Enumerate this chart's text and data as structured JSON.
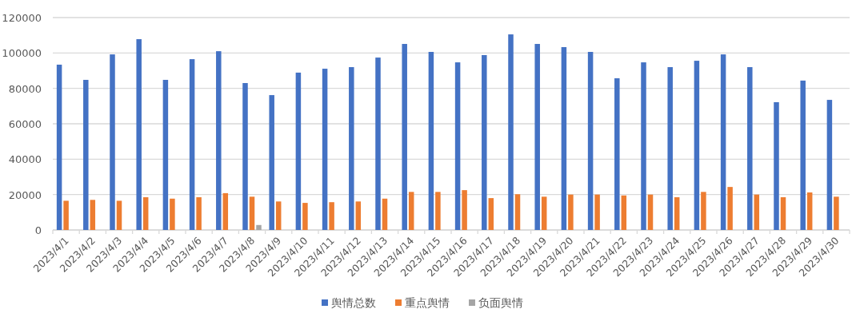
{
  "chart_data": {
    "type": "bar",
    "categories": [
      "2023/4/1",
      "2023/4/2",
      "2023/4/3",
      "2023/4/4",
      "2023/4/5",
      "2023/4/6",
      "2023/4/7",
      "2023/4/8",
      "2023/4/9",
      "2023/4/10",
      "2023/4/11",
      "2023/4/12",
      "2023/4/13",
      "2023/4/14",
      "2023/4/15",
      "2023/4/16",
      "2023/4/17",
      "2023/4/18",
      "2023/4/19",
      "2023/4/20",
      "2023/4/21",
      "2023/4/22",
      "2023/4/23",
      "2023/4/24",
      "2023/4/25",
      "2023/4/26",
      "2023/4/27",
      "2023/4/28",
      "2023/4/29",
      "2023/4/30"
    ],
    "series": [
      {
        "name": "舆情总数",
        "color": "#4472c4",
        "values": [
          93400,
          84800,
          99200,
          107800,
          84800,
          96500,
          101000,
          83000,
          76200,
          88900,
          91100,
          92000,
          97400,
          105100,
          100600,
          94700,
          98800,
          110500,
          105100,
          103300,
          100600,
          85700,
          94700,
          92000,
          95600,
          99200,
          92000,
          72200,
          84400,
          73500
        ]
      },
      {
        "name": "重点舆情",
        "color": "#ed7d31",
        "values": [
          16500,
          17000,
          16500,
          18500,
          17700,
          18500,
          20800,
          18800,
          16100,
          15300,
          15700,
          16100,
          17700,
          21500,
          21500,
          22500,
          18000,
          20200,
          18800,
          20000,
          20000,
          19500,
          20000,
          18500,
          21500,
          24300,
          20000,
          18500,
          21200,
          18800
        ]
      },
      {
        "name": "负面舆情",
        "color": "#a5a5a5",
        "values": [
          0,
          0,
          0,
          null,
          0,
          0,
          null,
          2800,
          0,
          0,
          0,
          0,
          0,
          null,
          null,
          null,
          0,
          0,
          0,
          0,
          0,
          0,
          0,
          0,
          0,
          0,
          0,
          0,
          0,
          0
        ]
      }
    ],
    "ylim": [
      0,
      120000
    ],
    "yticks": [
      0,
      20000,
      40000,
      60000,
      80000,
      100000,
      120000
    ],
    "grid": "y",
    "legend": "bottom"
  }
}
